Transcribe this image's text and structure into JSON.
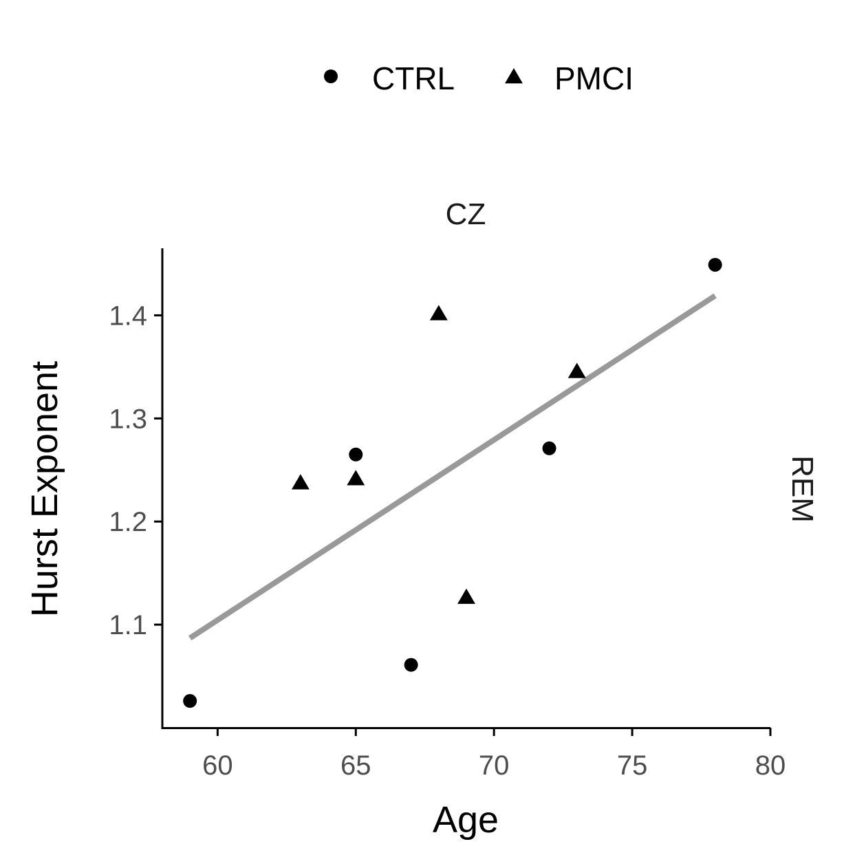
{
  "chart_data": {
    "type": "scatter",
    "facet_top": "CZ",
    "facet_right": "REM",
    "xlabel": "Age",
    "ylabel": "Hurst Exponent",
    "xlim": [
      58,
      80
    ],
    "ylim": [
      1.0,
      1.465
    ],
    "x_ticks": [
      60,
      65,
      70,
      75,
      80
    ],
    "y_ticks": [
      1.1,
      1.2,
      1.3,
      1.4
    ],
    "x_tick_labels": [
      "60",
      "65",
      "70",
      "75",
      "80"
    ],
    "y_tick_labels": [
      "1.1",
      "1.2",
      "1.3",
      "1.4"
    ],
    "legend_position": "top",
    "series": [
      {
        "name": "CTRL",
        "marker": "circle",
        "points": [
          {
            "x": 59,
            "y": 1.026
          },
          {
            "x": 65,
            "y": 1.265
          },
          {
            "x": 67,
            "y": 1.061
          },
          {
            "x": 72,
            "y": 1.271
          },
          {
            "x": 78,
            "y": 1.449
          }
        ]
      },
      {
        "name": "PMCI",
        "marker": "triangle",
        "points": [
          {
            "x": 63,
            "y": 1.238
          },
          {
            "x": 65,
            "y": 1.242
          },
          {
            "x": 68,
            "y": 1.402
          },
          {
            "x": 69,
            "y": 1.127
          },
          {
            "x": 73,
            "y": 1.346
          }
        ]
      }
    ],
    "trend_line": {
      "color": "#999999",
      "x": [
        59,
        78
      ],
      "y": [
        1.087,
        1.419
      ]
    },
    "point_color": "#000000"
  }
}
